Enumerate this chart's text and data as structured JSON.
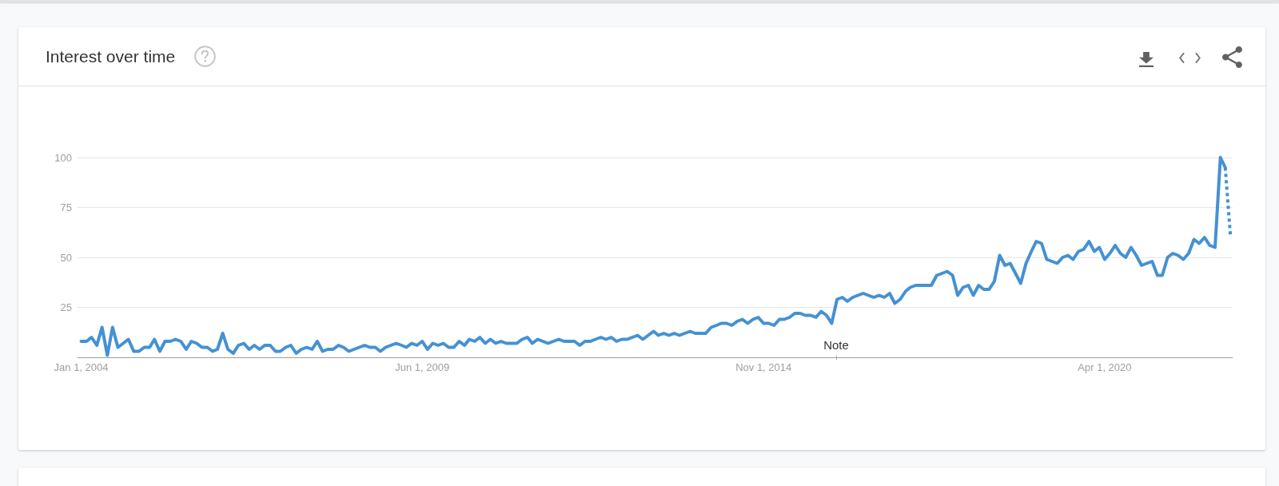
{
  "chart_data": {
    "type": "line",
    "title": "Interest over time",
    "annotations": [
      "Note"
    ],
    "series": [
      {
        "color": "#4591d3",
        "line_style": "solid",
        "x": [
          "2004-01",
          "2004-02",
          "2004-03",
          "2004-04",
          "2004-05",
          "2004-06",
          "2004-07",
          "2004-08",
          "2004-09",
          "2004-10",
          "2004-11",
          "2004-12",
          "2005-01",
          "2005-02",
          "2005-03",
          "2005-04",
          "2005-05",
          "2005-06",
          "2005-07",
          "2005-08",
          "2005-09",
          "2005-10",
          "2005-11",
          "2005-12",
          "2006-01",
          "2006-02",
          "2006-03",
          "2006-04",
          "2006-05",
          "2006-06",
          "2006-07",
          "2006-08",
          "2006-09",
          "2006-10",
          "2006-11",
          "2006-12",
          "2007-01",
          "2007-02",
          "2007-03",
          "2007-04",
          "2007-05",
          "2007-06",
          "2007-07",
          "2007-08",
          "2007-09",
          "2007-10",
          "2007-11",
          "2007-12",
          "2008-01",
          "2008-02",
          "2008-03",
          "2008-04",
          "2008-05",
          "2008-06",
          "2008-07",
          "2008-08",
          "2008-09",
          "2008-10",
          "2008-11",
          "2008-12",
          "2009-01",
          "2009-02",
          "2009-03",
          "2009-04",
          "2009-05",
          "2009-06",
          "2009-07",
          "2009-08",
          "2009-09",
          "2009-10",
          "2009-11",
          "2009-12",
          "2010-01",
          "2010-02",
          "2010-03",
          "2010-04",
          "2010-05",
          "2010-06",
          "2010-07",
          "2010-08",
          "2010-09",
          "2010-10",
          "2010-11",
          "2010-12",
          "2011-01",
          "2011-02",
          "2011-03",
          "2011-04",
          "2011-05",
          "2011-06",
          "2011-07",
          "2011-08",
          "2011-09",
          "2011-10",
          "2011-11",
          "2011-12",
          "2012-01",
          "2012-02",
          "2012-03",
          "2012-04",
          "2012-05",
          "2012-06",
          "2012-07",
          "2012-08",
          "2012-09",
          "2012-10",
          "2012-11",
          "2012-12",
          "2013-01",
          "2013-02",
          "2013-03",
          "2013-04",
          "2013-05",
          "2013-06",
          "2013-07",
          "2013-08",
          "2013-09",
          "2013-10",
          "2013-11",
          "2013-12",
          "2014-01",
          "2014-02",
          "2014-03",
          "2014-04",
          "2014-05",
          "2014-06",
          "2014-07",
          "2014-08",
          "2014-09",
          "2014-10",
          "2014-11",
          "2014-12",
          "2015-01",
          "2015-02",
          "2015-03",
          "2015-04",
          "2015-05",
          "2015-06",
          "2015-07",
          "2015-08",
          "2015-09",
          "2015-10",
          "2015-11",
          "2015-12",
          "2016-01",
          "2016-02",
          "2016-03",
          "2016-04",
          "2016-05",
          "2016-06",
          "2016-07",
          "2016-08",
          "2016-09",
          "2016-10",
          "2016-11",
          "2016-12",
          "2017-01",
          "2017-02",
          "2017-03",
          "2017-04",
          "2017-05",
          "2017-06",
          "2017-07",
          "2017-08",
          "2017-09",
          "2017-10",
          "2017-11",
          "2017-12",
          "2018-01",
          "2018-02",
          "2018-03",
          "2018-04",
          "2018-05",
          "2018-06",
          "2018-07",
          "2018-08",
          "2018-09",
          "2018-10",
          "2018-11",
          "2018-12",
          "2019-01",
          "2019-02",
          "2019-03",
          "2019-04",
          "2019-05",
          "2019-06",
          "2019-07",
          "2019-08",
          "2019-09",
          "2019-10",
          "2019-11",
          "2019-12",
          "2020-01",
          "2020-02",
          "2020-03",
          "2020-04",
          "2020-05",
          "2020-06",
          "2020-07",
          "2020-08",
          "2020-09",
          "2020-10",
          "2020-11",
          "2020-12",
          "2021-01",
          "2021-02",
          "2021-03",
          "2021-04",
          "2021-05",
          "2021-06",
          "2021-07",
          "2021-08",
          "2021-09",
          "2021-10",
          "2021-11",
          "2021-12",
          "2022-01",
          "2022-02",
          "2022-03"
        ],
        "values": [
          8,
          8,
          10,
          6,
          15,
          1,
          15,
          5,
          7,
          9,
          3,
          3,
          5,
          5,
          9,
          3,
          8,
          8,
          9,
          8,
          4,
          8,
          7,
          5,
          5,
          3,
          4,
          12,
          4,
          2,
          6,
          7,
          4,
          6,
          4,
          6,
          6,
          3,
          3,
          5,
          6,
          2,
          4,
          5,
          4,
          8,
          3,
          4,
          4,
          6,
          5,
          3,
          4,
          5,
          6,
          5,
          5,
          3,
          5,
          6,
          7,
          6,
          5,
          7,
          6,
          8,
          4,
          7,
          6,
          7,
          5,
          5,
          8,
          6,
          9,
          8,
          10,
          7,
          9,
          7,
          8,
          7,
          7,
          7,
          9,
          10,
          7,
          9,
          8,
          7,
          8,
          9,
          8,
          8,
          8,
          6,
          8,
          8,
          9,
          10,
          9,
          10,
          8,
          9,
          9,
          10,
          11,
          9,
          11,
          13,
          11,
          12,
          11,
          12,
          11,
          12,
          13,
          12,
          12,
          12,
          15,
          16,
          17,
          17,
          16,
          18,
          19,
          17,
          19,
          20,
          17,
          17,
          16,
          19,
          19,
          20,
          22,
          22,
          21,
          21,
          20,
          23,
          21,
          17,
          29,
          30,
          28,
          30,
          31,
          32,
          31,
          30,
          31,
          30,
          32,
          27,
          29,
          33,
          35,
          36,
          36,
          36,
          36,
          41,
          42,
          43,
          41,
          31,
          35,
          36,
          31,
          36,
          34,
          34,
          38,
          51,
          46,
          47,
          42,
          37,
          47,
          53,
          58,
          57,
          49,
          48,
          47,
          50,
          51,
          49,
          53,
          54,
          58,
          53,
          55,
          49,
          52,
          56,
          52,
          50,
          55,
          51,
          46,
          47,
          48,
          41,
          41,
          50,
          52,
          51,
          49,
          52,
          59,
          57,
          60,
          56,
          55,
          100,
          95
        ]
      },
      {
        "color": "#4591d3",
        "line_style": "dotted",
        "x": [
          "2022-03",
          "2022-04"
        ],
        "values": [
          95,
          60
        ]
      }
    ],
    "xlim": [
      "2003-12-11",
      "2022-04-13"
    ],
    "xticks": [
      {
        "value": "2004-01-01",
        "label": "Jan 1, 2004"
      },
      {
        "value": "2009-06-01",
        "label": "Jun 1, 2009"
      },
      {
        "value": "2014-11-01",
        "label": "Nov 1, 2014"
      },
      {
        "value": "2020-04-01",
        "label": "Apr 1, 2020"
      }
    ],
    "ylim": [
      0,
      100
    ],
    "yticks": [
      25,
      50,
      75,
      100
    ],
    "grid": "y"
  }
}
